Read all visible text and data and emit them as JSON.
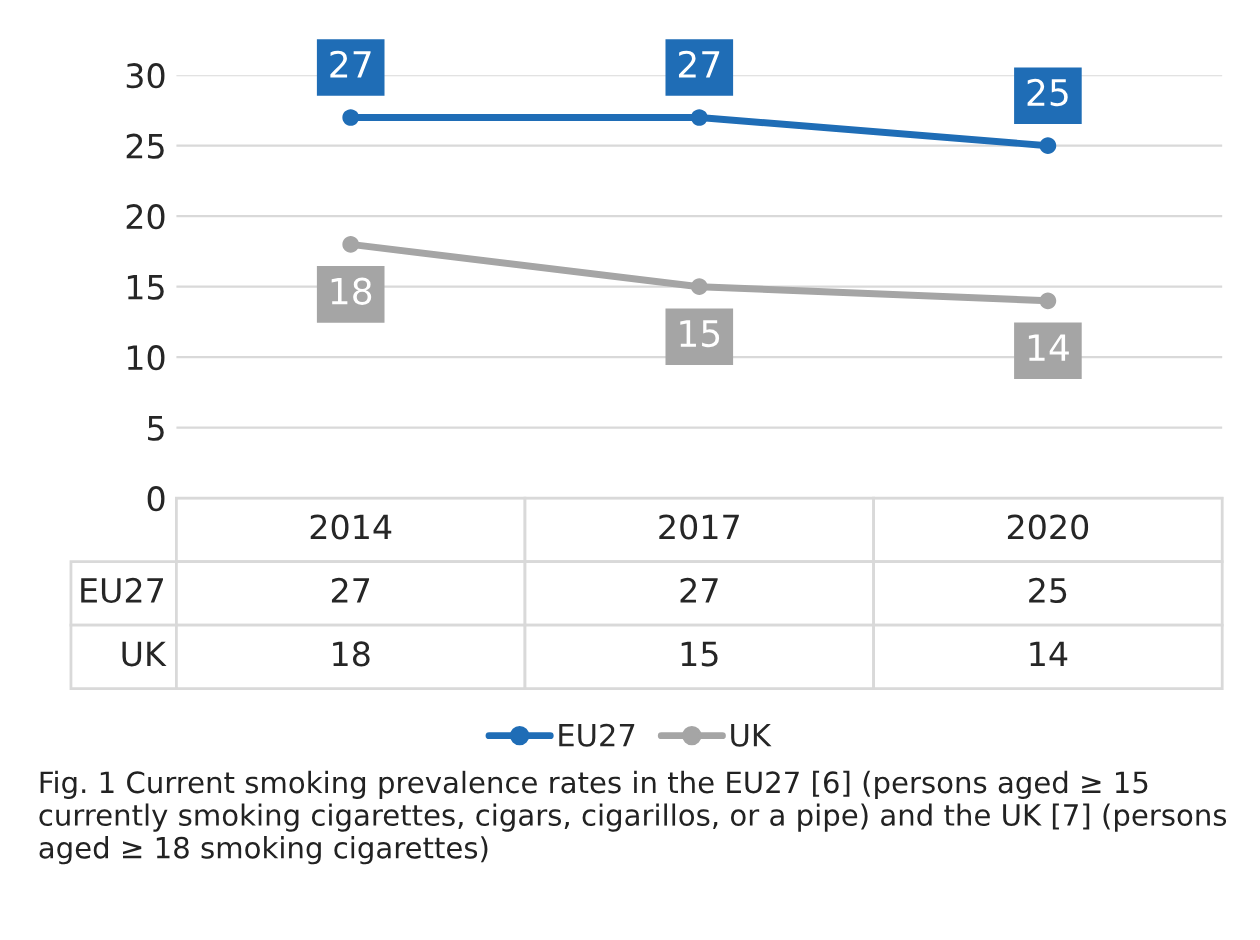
{
  "chart_data": {
    "type": "line",
    "categories": [
      "2014",
      "2017",
      "2020"
    ],
    "series": [
      {
        "name": "EU27",
        "color": "#1f6db6",
        "values": [
          27,
          27,
          25
        ]
      },
      {
        "name": "UK",
        "color": "#a5a5a5",
        "values": [
          18,
          15,
          14
        ]
      }
    ],
    "ylim": [
      0,
      30
    ],
    "yticks": [
      0,
      5,
      10,
      15,
      20,
      25,
      30
    ],
    "grid": "y",
    "marker": "circle",
    "line_style": "solid",
    "data_labels": true,
    "legend": "bottom",
    "annotations": [
      "27",
      "27",
      "25",
      "18",
      "15",
      "14",
      "Fig. 1 Current smoking prevalence rates in the EU27 [6] (persons aged ≥ 15 currently smoking cigarettes, cigars, cigarillos, or a pipe) and the UK [7] (persons aged ≥ 18 smoking cigarettes)"
    ]
  }
}
